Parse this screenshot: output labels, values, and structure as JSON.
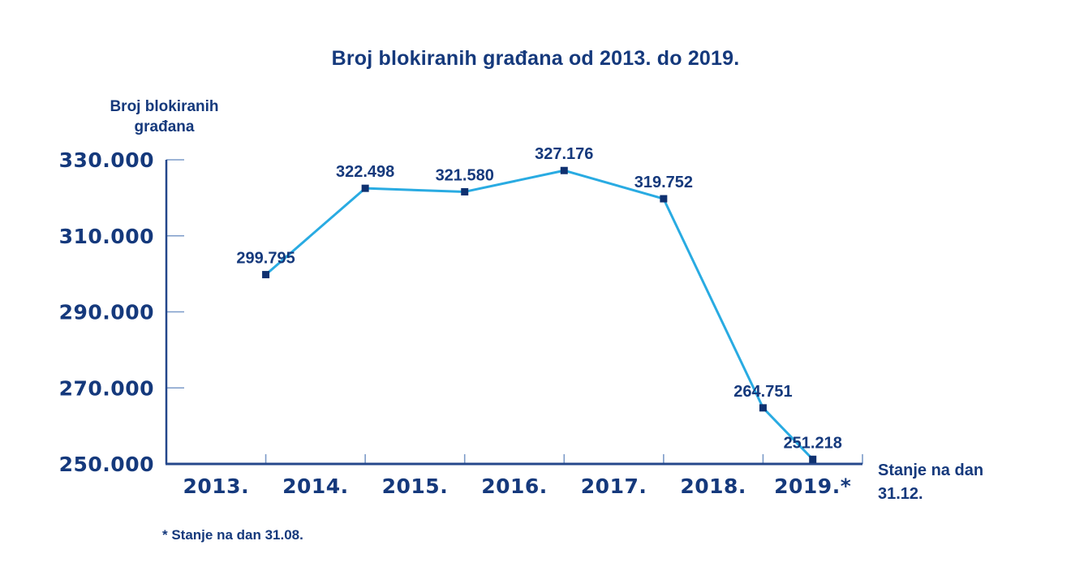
{
  "page": {
    "title": "Broj blokiranih građana od 2013. do 2019."
  },
  "axis_titles": {
    "y_line1": "Broj blokiranih",
    "y_line2": "građana",
    "x_line1": "Stanje na dan",
    "x_line2": "31.12."
  },
  "footnote": "* Stanje na dan 31.08.",
  "colors": {
    "text_navy": "#15397c",
    "axis_line": "#24478b",
    "inner_tick": "#7c9bc9",
    "series_line": "#29abe2",
    "marker": "#0f3170",
    "background": "#ffffff"
  },
  "chart_data": {
    "type": "line",
    "title": "Broj blokiranih građana od 2013. do 2019.",
    "ylabel": "Broj blokiranih građana",
    "xlabel": "Stanje na dan 31.12.",
    "footnote": "* Stanje na dan 31.08.",
    "categories": [
      "2013.",
      "2014.",
      "2015.",
      "2016.",
      "2017.",
      "2018.",
      "2019.*"
    ],
    "values": [
      299795,
      322498,
      321580,
      327176,
      319752,
      264751,
      251218
    ],
    "value_labels": [
      "299.795",
      "322.498",
      "321.580",
      "327.176",
      "319.752",
      "264.751",
      "251.218"
    ],
    "ylim": [
      250000,
      330000
    ],
    "yticks": [
      250000,
      270000,
      290000,
      310000,
      330000
    ],
    "ytick_labels": [
      "250.000",
      "270.000",
      "290.000",
      "310.000",
      "330.000"
    ],
    "grid": false,
    "legend": null,
    "marker_shape": "square",
    "note": "2019 value is as of 31.08., all others as of 31.12."
  }
}
